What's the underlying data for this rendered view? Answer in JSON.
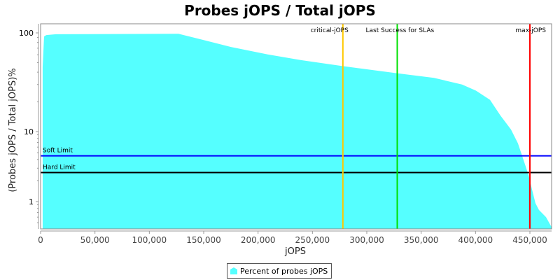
{
  "chart_data": {
    "type": "area",
    "title": "Probes jOPS / Total jOPS",
    "xlabel": "jOPS",
    "ylabel": "(Probes jOPS / Total jOPS)%",
    "yscale": "log",
    "xlim": [
      0,
      470000
    ],
    "ylim": [
      0.4,
      130
    ],
    "x_ticks": [
      0,
      50000,
      100000,
      150000,
      200000,
      250000,
      300000,
      350000,
      400000,
      450000
    ],
    "x_tick_labels": [
      "0",
      "50,000",
      "100,000",
      "150,000",
      "200,000",
      "250,000",
      "300,000",
      "350,000",
      "400,000",
      "450,000"
    ],
    "y_ticks": [
      1,
      10,
      100
    ],
    "y_tick_labels": [
      "1",
      "10",
      "100"
    ],
    "series": [
      {
        "name": "Percent of probes jOPS",
        "color": "#55ffff",
        "x": [
          1900,
          3200,
          5200,
          14200,
          126800,
          149400,
          175100,
          207300,
          239500,
          278100,
          327700,
          361800,
          387600,
          400400,
          413300,
          423000,
          432600,
          439000,
          445500,
          448700,
          451900,
          455100,
          458300,
          464800,
          470000
        ],
        "y": [
          45,
          92,
          95,
          97,
          98,
          85,
          72,
          61,
          53,
          46,
          39,
          35,
          30,
          26,
          21,
          14.5,
          10.5,
          6.8,
          3.4,
          2.4,
          1.5,
          0.95,
          0.76,
          0.6,
          0.43
        ]
      }
    ],
    "horizontal_markers": [
      {
        "label": "Soft Limit",
        "value": 4.5,
        "color": "#0000ff"
      },
      {
        "label": "Hard Limit",
        "value": 2.6,
        "color": "#000000"
      }
    ],
    "vertical_markers": [
      {
        "label": "critical-jOPS",
        "value": 278000,
        "color": "#ffc800"
      },
      {
        "label": "Last Success for SLAs",
        "value": 328000,
        "color": "#00e000"
      },
      {
        "label": "max-jOPS",
        "value": 450000,
        "color": "#ff0000"
      }
    ],
    "legend": {
      "label": "Percent of probes jOPS",
      "placement": "bottom"
    },
    "grid": false
  }
}
